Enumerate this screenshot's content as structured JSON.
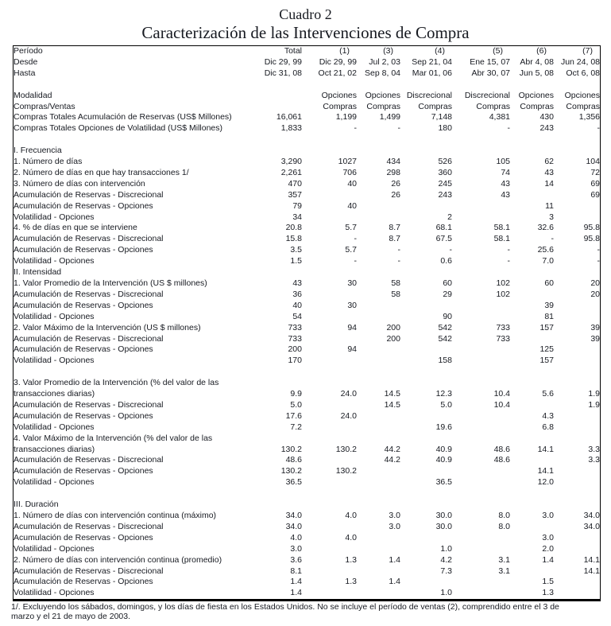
{
  "page": {
    "title_line1": "Cuadro 2",
    "title_line2": "Caracterización de las Intervenciones de Compra",
    "footnote_line1": "1/. Excluyendo los sábados, domingos, y los días de fiesta en los Estados Unidos. No se incluye el período de ventas (2), comprendido entre el 3 de",
    "footnote_line2": "marzo y el 21 de mayo de 2003."
  },
  "table": {
    "columns": [
      "Total",
      "(1)",
      "(3)",
      "(4)",
      "(5)",
      "(6)",
      "(7)"
    ],
    "rows": [
      {
        "header": true,
        "label": "Período",
        "indent": 0
      },
      {
        "label": "Desde",
        "indent": 0,
        "values": [
          "Dic 29, 99",
          "Dic 29, 99",
          "Jul 2, 03",
          "Sep 21, 04",
          "Ene 15, 07",
          "Abr 4, 08",
          "Jun 24, 08"
        ]
      },
      {
        "label": "Hasta",
        "indent": 0,
        "values": [
          "Dic 31, 08",
          "Oct 21, 02",
          "Sep 8, 04",
          "Mar 01, 06",
          "Abr 30, 07",
          "Jun 5, 08",
          "Oct 6, 08"
        ]
      },
      {
        "blank": true
      },
      {
        "label": "Modalidad",
        "indent": 0,
        "values": [
          "",
          "Opciones",
          "Opciones",
          "Discrecional",
          "Discrecional",
          "Opciones",
          "Opciones"
        ]
      },
      {
        "label": "Compras/Ventas",
        "indent": 0,
        "values": [
          "",
          "Compras",
          "Compras",
          "Compras",
          "Compras",
          "Compras",
          "Compras"
        ]
      },
      {
        "label": "Compras Totales Acumulación de Reservas (US$ Millones)",
        "indent": 0,
        "values": [
          "16,061",
          "1,199",
          "1,499",
          "7,148",
          "4,381",
          "430",
          "1,356"
        ]
      },
      {
        "label": "Compras Totales Opciones de Volatilidad (US$ Millones)",
        "indent": 0,
        "values": [
          "1,833",
          "-",
          "-",
          "180",
          "-",
          "243",
          "-"
        ]
      },
      {
        "blank": true
      },
      {
        "label": "I. Frecuencia",
        "indent": 0
      },
      {
        "label": "1. Número de días",
        "indent": 1,
        "values": [
          "3,290",
          "1027",
          "434",
          "526",
          "105",
          "62",
          "104"
        ]
      },
      {
        "label": "2. Número de días en que hay transacciones 1/",
        "indent": 1,
        "values": [
          "2,261",
          "706",
          "298",
          "360",
          "74",
          "43",
          "72"
        ]
      },
      {
        "label": "3. Número de días con intervención",
        "indent": 1,
        "values": [
          "470",
          "40",
          "26",
          "245",
          "43",
          "14",
          "69"
        ]
      },
      {
        "label": "Acumulación de Reservas  - Discrecional",
        "indent": 3,
        "values": [
          "357",
          "",
          "26",
          "243",
          "43",
          "",
          "69"
        ]
      },
      {
        "label": "Acumulación de Reservas  - Opciones",
        "indent": 3,
        "values": [
          "79",
          "40",
          "",
          "",
          "",
          "11",
          ""
        ]
      },
      {
        "label": "Volatilidad - Opciones",
        "indent": 2,
        "values": [
          "34",
          "",
          "",
          "2",
          "",
          "3",
          ""
        ]
      },
      {
        "label": "4. % de días en que se interviene",
        "indent": 1,
        "values": [
          "20.8",
          "5.7",
          "8.7",
          "68.1",
          "58.1",
          "32.6",
          "95.8"
        ]
      },
      {
        "label": "Acumulación de Reservas  - Discrecional",
        "indent": 3,
        "values": [
          "15.8",
          "-",
          "8.7",
          "67.5",
          "58.1",
          "-",
          "95.8"
        ]
      },
      {
        "label": "Acumulación de Reservas  - Opciones",
        "indent": 3,
        "values": [
          "3.5",
          "5.7",
          "-",
          "-",
          "-",
          "25.6",
          "-"
        ]
      },
      {
        "label": "Volatilidad - Opciones",
        "indent": 2,
        "values": [
          "1.5",
          "-",
          "-",
          "0.6",
          "-",
          "7.0",
          "-"
        ]
      },
      {
        "label": "II. Intensidad",
        "indent": 0
      },
      {
        "label": "1. Valor Promedio de la Intervención (US $ millones)",
        "indent": 1,
        "values": [
          "43",
          "30",
          "58",
          "60",
          "102",
          "60",
          "20"
        ]
      },
      {
        "label": "Acumulación de Reservas  - Discrecional",
        "indent": 3,
        "values": [
          "36",
          "",
          "58",
          "29",
          "102",
          "",
          "20"
        ]
      },
      {
        "label": "Acumulación de Reservas  - Opciones",
        "indent": 3,
        "values": [
          "40",
          "30",
          "",
          "",
          "",
          "39",
          ""
        ]
      },
      {
        "label": "Volatilidad - Opciones",
        "indent": 2,
        "values": [
          "54",
          "",
          "",
          "90",
          "",
          "81",
          ""
        ]
      },
      {
        "label": "2. Valor Máximo de la Intervención (US $ millones)",
        "indent": 1,
        "values": [
          "733",
          "94",
          "200",
          "542",
          "733",
          "157",
          "39"
        ]
      },
      {
        "label": "Acumulación de Reservas  - Discrecional",
        "indent": 3,
        "values": [
          "733",
          "",
          "200",
          "542",
          "733",
          "",
          "39"
        ]
      },
      {
        "label": "Acumulación de Reservas  - Opciones",
        "indent": 3,
        "values": [
          "200",
          "94",
          "",
          "",
          "",
          "125",
          ""
        ]
      },
      {
        "label": "Volatilidad - Opciones",
        "indent": 2,
        "values": [
          "170",
          "",
          "",
          "158",
          "",
          "157",
          ""
        ]
      },
      {
        "blank": true
      },
      {
        "label": "3. Valor Promedio de la Intervención (% del valor de las",
        "indent": 1
      },
      {
        "label": "transacciones diarias)",
        "indent": 0,
        "values": [
          "9.9",
          "24.0",
          "14.5",
          "12.3",
          "10.4",
          "5.6",
          "1.9"
        ]
      },
      {
        "label": "Acumulación de Reservas  - Discrecional",
        "indent": 3,
        "values": [
          "5.0",
          "",
          "14.5",
          "5.0",
          "10.4",
          "",
          "1.9"
        ]
      },
      {
        "label": "Acumulación de Reservas  - Opciones",
        "indent": 3,
        "values": [
          "17.6",
          "24.0",
          "",
          "",
          "",
          "4.3",
          ""
        ]
      },
      {
        "label": "Volatilidad - Opciones",
        "indent": 2,
        "values": [
          "7.2",
          "",
          "",
          "19.6",
          "",
          "6.8",
          ""
        ]
      },
      {
        "label": "4. Valor Máximo de la Intervención (% del valor de las",
        "indent": 1
      },
      {
        "label": "transacciones diarias)",
        "indent": 0,
        "values": [
          "130.2",
          "130.2",
          "44.2",
          "40.9",
          "48.6",
          "14.1",
          "3.3"
        ]
      },
      {
        "label": "Acumulación de Reservas  - Discrecional",
        "indent": 3,
        "values": [
          "48.6",
          "",
          "44.2",
          "40.9",
          "48.6",
          "",
          "3.3"
        ]
      },
      {
        "label": "Acumulación de Reservas  - Opciones",
        "indent": 3,
        "values": [
          "130.2",
          "130.2",
          "",
          "",
          "",
          "14.1",
          ""
        ]
      },
      {
        "label": "Volatilidad - Opciones",
        "indent": 2,
        "values": [
          "36.5",
          "",
          "",
          "36.5",
          "",
          "12.0",
          ""
        ]
      },
      {
        "blank": true
      },
      {
        "label": "III. Duración",
        "indent": 0
      },
      {
        "label": "1. Número de días con intervención continua (máximo)",
        "indent": 1,
        "values": [
          "34.0",
          "4.0",
          "3.0",
          "30.0",
          "8.0",
          "3.0",
          "34.0"
        ]
      },
      {
        "label": "Acumulación de Reservas  - Discrecional",
        "indent": 3,
        "values": [
          "34.0",
          "",
          "3.0",
          "30.0",
          "8.0",
          "",
          "34.0"
        ]
      },
      {
        "label": "Acumulación de Reservas  - Opciones",
        "indent": 3,
        "values": [
          "4.0",
          "4.0",
          "",
          "",
          "",
          "3.0",
          ""
        ]
      },
      {
        "label": "Volatilidad - Opciones",
        "indent": 2,
        "values": [
          "3.0",
          "",
          "",
          "1.0",
          "",
          "2.0",
          ""
        ]
      },
      {
        "label": "2. Número de días con intervención continua (promedio)",
        "indent": 1,
        "values": [
          "3.6",
          "1.3",
          "1.4",
          "4.2",
          "3.1",
          "1.4",
          "14.1"
        ]
      },
      {
        "label": "Acumulación de Reservas  - Discrecional",
        "indent": 3,
        "values": [
          "8.1",
          "",
          "",
          "7.3",
          "3.1",
          "",
          "14.1"
        ]
      },
      {
        "label": "Acumulación de Reservas  - Opciones",
        "indent": 3,
        "values": [
          "1.4",
          "1.3",
          "1.4",
          "",
          "",
          "1.5",
          ""
        ]
      },
      {
        "label": "Volatilidad - Opciones",
        "indent": 2,
        "values": [
          "1.4",
          "",
          "",
          "1.0",
          "",
          "1.3",
          ""
        ]
      }
    ]
  }
}
